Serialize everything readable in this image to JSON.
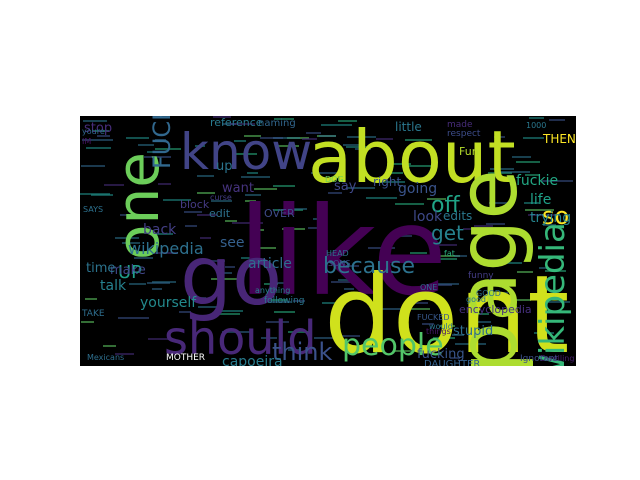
{
  "wordcloud": {
    "background_color": "#000000",
    "words": [
      {
        "text": "like",
        "color": "#440154",
        "rotate": false
      },
      {
        "text": "dont",
        "color": "#d0e11c",
        "rotate": false
      },
      {
        "text": "about",
        "color": "#c2df23",
        "rotate": false
      },
      {
        "text": "go",
        "color": "#482677",
        "rotate": false
      },
      {
        "text": "page",
        "color": "#addc30",
        "rotate": true
      },
      {
        "text": "know",
        "color": "#414487",
        "rotate": false
      },
      {
        "text": "one",
        "color": "#6ccd5a",
        "rotate": true
      },
      {
        "text": "should",
        "color": "#482878",
        "rotate": false
      },
      {
        "text": "Wikipedia",
        "color": "#35b779",
        "rotate": true
      },
      {
        "text": "people",
        "color": "#52c569",
        "rotate": false
      },
      {
        "text": "because",
        "color": "#2c728e",
        "rotate": false
      },
      {
        "text": "think",
        "color": "#3b528b",
        "rotate": false
      },
      {
        "text": "get",
        "color": "#26828e",
        "rotate": false
      },
      {
        "text": "off",
        "color": "#20a486",
        "rotate": false
      },
      {
        "text": "so",
        "color": "#fde725",
        "rotate": false
      },
      {
        "text": "FUCKING",
        "color": "#31688e",
        "rotate": true
      },
      {
        "text": "UP",
        "color": "#1f9e89",
        "rotate": false
      },
      {
        "text": "look",
        "color": "#3e4989",
        "rotate": false
      },
      {
        "text": "edits",
        "color": "#2a788e",
        "rotate": false
      },
      {
        "text": "trying",
        "color": "#25858e",
        "rotate": false
      },
      {
        "text": "life",
        "color": "#1fa188",
        "rotate": false
      },
      {
        "text": "fuckie",
        "color": "#22a884",
        "rotate": false
      },
      {
        "text": "going",
        "color": "#3a548c",
        "rotate": false
      },
      {
        "text": "wikipedia",
        "color": "#2d708e",
        "rotate": false
      },
      {
        "text": "yourself",
        "color": "#238a8d",
        "rotate": false
      },
      {
        "text": "capoeira",
        "color": "#287c8e",
        "rotate": false
      },
      {
        "text": "stupid",
        "color": "#2e6e8e",
        "rotate": false
      },
      {
        "text": "fucking",
        "color": "#39568c",
        "rotate": false
      },
      {
        "text": "back",
        "color": "#433e85",
        "rotate": false
      },
      {
        "text": "see",
        "color": "#35608d",
        "rotate": false
      },
      {
        "text": "article",
        "color": "#2f6c8e",
        "rotate": false
      },
      {
        "text": "talk",
        "color": "#26818e",
        "rotate": false
      },
      {
        "text": "make",
        "color": "#404688",
        "rotate": false
      },
      {
        "text": "time",
        "color": "#2c738e",
        "rotate": false
      },
      {
        "text": "stop",
        "color": "#472d7b",
        "rotate": false
      },
      {
        "text": "say",
        "color": "#3f4889",
        "rotate": false
      },
      {
        "text": "little",
        "color": "#2a778e",
        "rotate": false
      },
      {
        "text": "want",
        "color": "#46337e",
        "rotate": false
      },
      {
        "text": "up",
        "color": "#2b748e",
        "rotate": false
      },
      {
        "text": "THEN",
        "color": "#fde725",
        "rotate": false
      },
      {
        "text": "encyclopedia",
        "color": "#46307e",
        "rotate": false
      },
      {
        "text": "Fun",
        "color": "#b5de2b",
        "rotate": false
      },
      {
        "text": "OVER",
        "color": "#3e4a89",
        "rotate": false
      },
      {
        "text": "block",
        "color": "#443a83",
        "rotate": false
      },
      {
        "text": "edit",
        "color": "#2d718e",
        "rotate": false
      },
      {
        "text": "right",
        "color": "#3b518b",
        "rotate": false
      },
      {
        "text": "reference",
        "color": "#297a8e",
        "rotate": false
      },
      {
        "text": "naming",
        "color": "#31668e",
        "rotate": false
      },
      {
        "text": "made",
        "color": "#472c7a",
        "rotate": false
      },
      {
        "text": "respect",
        "color": "#3d4d8a",
        "rotate": false
      },
      {
        "text": "following",
        "color": "#2a768e",
        "rotate": false
      },
      {
        "text": "DAUGHTER",
        "color": "#34618d",
        "rotate": false
      },
      {
        "text": "MOTHER",
        "color": "#ffffff",
        "rotate": false
      },
      {
        "text": "Mexicans",
        "color": "#2e6f8e",
        "rotate": false
      },
      {
        "text": "Dwelling",
        "color": "#481f70",
        "rotate": false
      },
      {
        "text": "Ignorant",
        "color": "#3c4f8a",
        "rotate": false
      },
      {
        "text": "funny",
        "color": "#433d84",
        "rotate": false
      },
      {
        "text": "SAYS",
        "color": "#2d718e",
        "rotate": false
      },
      {
        "text": "FUCKED",
        "color": "#38598c",
        "rotate": false
      },
      {
        "text": "anything",
        "color": "#25838e",
        "rotate": false
      },
      {
        "text": "curse",
        "color": "#433e85",
        "rotate": false
      },
      {
        "text": "good",
        "color": "#2a778e",
        "rotate": false
      },
      {
        "text": "DOG",
        "color": "#6ece58",
        "rotate": false
      },
      {
        "text": "GOOD",
        "color": "#2d708e",
        "rotate": false
      },
      {
        "text": "things",
        "color": "#48186a",
        "rotate": false
      },
      {
        "text": "would",
        "color": "#2c738e",
        "rotate": false
      },
      {
        "text": "fat",
        "color": "#29af7f",
        "rotate": false
      },
      {
        "text": "youre",
        "color": "#31678e",
        "rotate": false
      },
      {
        "text": "SONS",
        "color": "#3b528b",
        "rotate": false
      },
      {
        "text": "IM",
        "color": "#481467",
        "rotate": false
      },
      {
        "text": "ONE",
        "color": "#31678e",
        "rotate": false
      },
      {
        "text": "HEAD",
        "color": "#2c738e",
        "rotate": false
      },
      {
        "text": "TAKE",
        "color": "#2e6e8e",
        "rotate": false
      },
      {
        "text": "1000",
        "color": "#2a788e",
        "rotate": false
      }
    ]
  }
}
